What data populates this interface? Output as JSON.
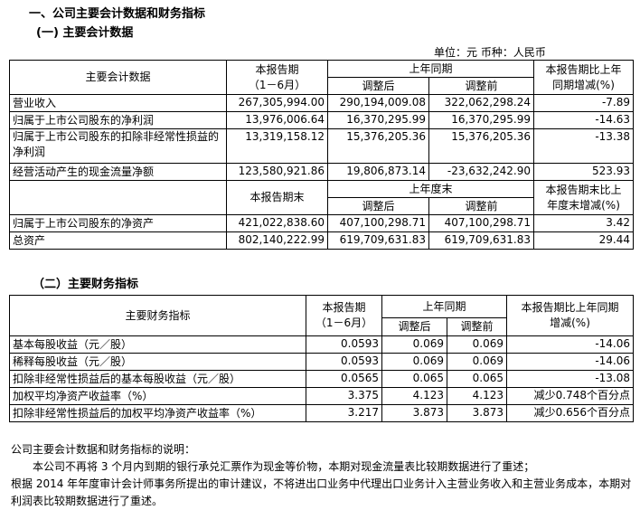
{
  "heading1": "一、公司主要会计数据和财务指标",
  "heading2": "(一) 主要会计数据",
  "unit_line": "单位：元  币种：人民币",
  "table1": {
    "h_item": "主要会计数据",
    "h_cur": "本报告期",
    "h_cur2": "（1－6月）",
    "h_prev": "上年同期",
    "h_adj": "调整后",
    "h_pre": "调整前",
    "h_chg": "本报告期比上年",
    "h_chg2": "同期增减(%)",
    "rows": [
      [
        "营业收入",
        "267,305,994.00",
        "290,194,009.08",
        "322,062,298.24",
        "-7.89"
      ],
      [
        "归属于上市公司股东的净利润",
        "13,976,006.64",
        "16,370,295.99",
        "16,370,295.99",
        "-14.63"
      ],
      [
        "归属于上市公司股东的扣除非经常性损益的净利润",
        "13,319,158.12",
        "15,376,205.36",
        "15,376,205.36",
        "-13.38"
      ],
      [
        "经营活动产生的现金流量净额",
        "123,580,921.86",
        "19,806,873.14",
        "-23,632,242.90",
        "523.93"
      ]
    ],
    "h2_cur": "本报告期末",
    "h2_prev": "上年度末",
    "h2_adj": "调整后",
    "h2_pre": "调整前",
    "h2_chg": "本报告期末比上",
    "h2_chg2": "年度末增减(%)",
    "rows2": [
      [
        "归属于上市公司股东的净资产",
        "421,022,838.60",
        "407,100,298.71",
        "407,100,298.71",
        "3.42"
      ],
      [
        "总资产",
        "802,140,222.99",
        "619,709,631.83",
        "619,709,631.83",
        "29.44"
      ]
    ]
  },
  "heading3": "（二）主要财务指标",
  "table2": {
    "h_item": "主要财务指标",
    "h_cur": "本报告期",
    "h_cur2": "（1－6月）",
    "h_prev": "上年同期",
    "h_adj": "调整后",
    "h_pre": "调整前",
    "h_chg": "本报告期比上年同期",
    "h_chg2": "增减(%)",
    "rows": [
      [
        "基本每股收益（元／股）",
        "0.0593",
        "0.069",
        "0.069",
        "-14.06"
      ],
      [
        "稀释每股收益（元／股）",
        "0.0593",
        "0.069",
        "0.069",
        "-14.06"
      ],
      [
        "扣除非经常性损益后的基本每股收益（元／股）",
        "0.0565",
        "0.065",
        "0.065",
        "-13.08"
      ],
      [
        "加权平均净资产收益率（%）",
        "3.375",
        "4.123",
        "4.123",
        "减少0.748个百分点"
      ],
      [
        "扣除非经常性损益后的加权平均净资产收益率（%）",
        "3.217",
        "3.873",
        "3.873",
        "减少0.656个百分点"
      ]
    ]
  },
  "note": {
    "title": "公司主要会计数据和财务指标的说明：",
    "p1": "　　本公司不再将 3 个月内到期的银行承兑汇票作为现金等价物，本期对现金流量表比较期数据进行了重述；",
    "p2": "根据 2014 年年度审计会计师事务所提出的审计建议，不将进出口业务中代理出口业务计入主营业务收入和主营业务成本，本期对利润表比较期数据进行了重述。"
  }
}
